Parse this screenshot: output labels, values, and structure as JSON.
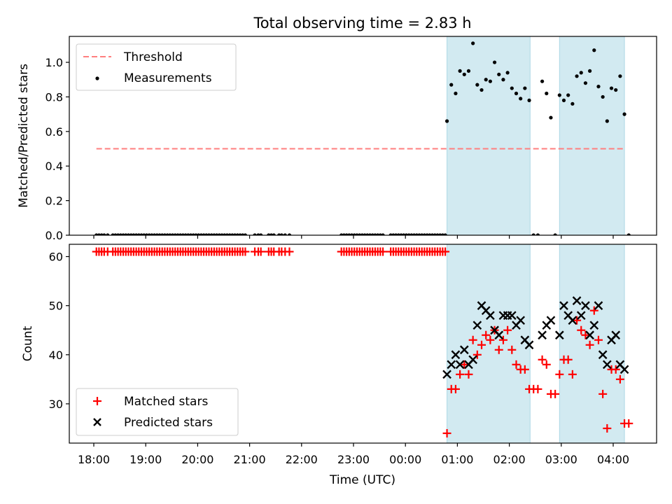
{
  "title": "Total observing time = 2.83 h",
  "shaded_color": "#add8e6",
  "chart_data": [
    {
      "type": "scatter",
      "ylabel": "Matched/Predicted stars",
      "ylim": [
        0,
        1.15
      ],
      "yticks": [
        "0.0",
        "0.2",
        "0.4",
        "0.6",
        "0.8",
        "1.0"
      ],
      "grid": false,
      "legend_position": "top-left",
      "shaded_intervals": [
        [
          "00:48",
          "02:24"
        ],
        [
          "02:58",
          "04:13"
        ]
      ],
      "series": [
        {
          "name": "Threshold",
          "style": "dashed-line",
          "color": "#ff7f7f",
          "x": [
            "18:03",
            "04:13"
          ],
          "y": [
            0.5,
            0.5
          ]
        },
        {
          "name": "Measurements",
          "style": "point",
          "color": "#000000",
          "x": [
            "18:03",
            "18:06",
            "18:09",
            "18:12",
            "18:16",
            "18:22",
            "18:25",
            "18:28",
            "18:31",
            "18:34",
            "18:37",
            "18:40",
            "18:43",
            "18:46",
            "18:49",
            "18:52",
            "18:55",
            "18:58",
            "19:01",
            "19:04",
            "19:07",
            "19:10",
            "19:13",
            "19:16",
            "19:19",
            "19:22",
            "19:25",
            "19:28",
            "19:31",
            "19:34",
            "19:37",
            "19:40",
            "19:43",
            "19:46",
            "19:49",
            "19:52",
            "19:55",
            "19:58",
            "20:01",
            "20:04",
            "20:07",
            "20:10",
            "20:13",
            "20:16",
            "20:19",
            "20:22",
            "20:25",
            "20:28",
            "20:31",
            "20:34",
            "20:37",
            "20:40",
            "20:43",
            "20:46",
            "20:49",
            "20:52",
            "20:55",
            "21:06",
            "21:10",
            "21:13",
            "21:22",
            "21:25",
            "21:28",
            "21:34",
            "21:37",
            "21:41",
            "21:46",
            "22:46",
            "22:49",
            "22:52",
            "22:55",
            "22:58",
            "23:01",
            "23:04",
            "23:07",
            "23:10",
            "23:13",
            "23:16",
            "23:19",
            "23:22",
            "23:25",
            "23:28",
            "23:31",
            "23:34",
            "23:43",
            "23:46",
            "23:49",
            "23:52",
            "23:55",
            "23:58",
            "00:01",
            "00:04",
            "00:07",
            "00:10",
            "00:13",
            "00:16",
            "00:19",
            "00:22",
            "00:25",
            "00:28",
            "00:31",
            "00:34",
            "00:37",
            "00:40",
            "00:43",
            "00:46",
            "00:48",
            "00:53",
            "00:58",
            "01:03",
            "01:08",
            "01:13",
            "01:18",
            "01:23",
            "01:28",
            "01:33",
            "01:38",
            "01:43",
            "01:48",
            "01:53",
            "01:58",
            "02:03",
            "02:08",
            "02:13",
            "02:18",
            "02:23",
            "02:28",
            "02:33",
            "02:38",
            "02:43",
            "02:48",
            "02:53",
            "02:58",
            "03:03",
            "03:08",
            "03:13",
            "03:18",
            "03:23",
            "03:28",
            "03:33",
            "03:38",
            "03:43",
            "03:48",
            "03:53",
            "03:58",
            "04:03",
            "04:08",
            "04:13",
            "04:18"
          ],
          "y": [
            0,
            0,
            0,
            0,
            0,
            0,
            0,
            0,
            0,
            0,
            0,
            0,
            0,
            0,
            0,
            0,
            0,
            0,
            0,
            0,
            0,
            0,
            0,
            0,
            0,
            0,
            0,
            0,
            0,
            0,
            0,
            0,
            0,
            0,
            0,
            0,
            0,
            0,
            0,
            0,
            0,
            0,
            0,
            0,
            0,
            0,
            0,
            0,
            0,
            0,
            0,
            0,
            0,
            0,
            0,
            0,
            0,
            0,
            0,
            0,
            0,
            0,
            0,
            0,
            0,
            0,
            0,
            0,
            0,
            0,
            0,
            0,
            0,
            0,
            0,
            0,
            0,
            0,
            0,
            0,
            0,
            0,
            0,
            0,
            0,
            0,
            0,
            0,
            0,
            0,
            0,
            0,
            0,
            0,
            0,
            0,
            0,
            0,
            0,
            0,
            0,
            0,
            0,
            0,
            0,
            0,
            0.66,
            0.87,
            0.82,
            0.95,
            0.93,
            0.95,
            1.11,
            0.87,
            0.84,
            0.9,
            0.89,
            1.0,
            0.93,
            0.9,
            0.94,
            0.85,
            0.82,
            0.79,
            0.85,
            0.78,
            0,
            0,
            0.89,
            0.82,
            0.68,
            0,
            0.81,
            0.78,
            0.81,
            0.76,
            0.92,
            0.94,
            0.88,
            0.95,
            1.07,
            0.86,
            0.8,
            0.66,
            0.85,
            0.84,
            0.92,
            0.7,
            0
          ]
        }
      ]
    },
    {
      "type": "scatter",
      "ylabel": "Count",
      "xlabel": "Time (UTC)",
      "ylim": [
        22,
        62.5
      ],
      "yticks": [
        "30",
        "40",
        "50",
        "60"
      ],
      "xticks": [
        "18:00",
        "19:00",
        "20:00",
        "21:00",
        "22:00",
        "23:00",
        "00:00",
        "01:00",
        "02:00",
        "03:00",
        "04:00"
      ],
      "grid": false,
      "legend_position": "bottom-left",
      "shaded_intervals": [
        [
          "00:48",
          "02:24"
        ],
        [
          "02:58",
          "04:13"
        ]
      ],
      "series": [
        {
          "name": "Matched stars",
          "marker": "+",
          "color": "#ff0000",
          "x": [
            "18:03",
            "18:06",
            "18:09",
            "18:12",
            "18:16",
            "18:22",
            "18:25",
            "18:28",
            "18:31",
            "18:34",
            "18:37",
            "18:40",
            "18:43",
            "18:46",
            "18:49",
            "18:52",
            "18:55",
            "18:58",
            "19:01",
            "19:04",
            "19:07",
            "19:10",
            "19:13",
            "19:16",
            "19:19",
            "19:22",
            "19:25",
            "19:28",
            "19:31",
            "19:34",
            "19:37",
            "19:40",
            "19:43",
            "19:46",
            "19:49",
            "19:52",
            "19:55",
            "19:58",
            "20:01",
            "20:04",
            "20:07",
            "20:10",
            "20:13",
            "20:16",
            "20:19",
            "20:22",
            "20:25",
            "20:28",
            "20:31",
            "20:34",
            "20:37",
            "20:40",
            "20:43",
            "20:46",
            "20:49",
            "20:52",
            "20:55",
            "21:06",
            "21:10",
            "21:13",
            "21:22",
            "21:25",
            "21:28",
            "21:34",
            "21:37",
            "21:41",
            "21:46",
            "22:46",
            "22:49",
            "22:52",
            "22:55",
            "22:58",
            "23:01",
            "23:04",
            "23:07",
            "23:10",
            "23:13",
            "23:16",
            "23:19",
            "23:22",
            "23:25",
            "23:28",
            "23:31",
            "23:34",
            "23:43",
            "23:46",
            "23:49",
            "23:52",
            "23:55",
            "23:58",
            "00:01",
            "00:04",
            "00:07",
            "00:10",
            "00:13",
            "00:16",
            "00:19",
            "00:22",
            "00:25",
            "00:28",
            "00:31",
            "00:34",
            "00:37",
            "00:40",
            "00:43",
            "00:46",
            "00:48",
            "00:53",
            "00:58",
            "01:03",
            "01:08",
            "01:13",
            "01:18",
            "01:23",
            "01:28",
            "01:33",
            "01:38",
            "01:43",
            "01:48",
            "01:53",
            "01:58",
            "02:03",
            "02:08",
            "02:13",
            "02:18",
            "02:23",
            "02:28",
            "02:33",
            "02:38",
            "02:43",
            "02:48",
            "02:53",
            "02:58",
            "03:03",
            "03:08",
            "03:13",
            "03:18",
            "03:23",
            "03:28",
            "03:33",
            "03:38",
            "03:43",
            "03:48",
            "03:53",
            "03:58",
            "04:03",
            "04:08",
            "04:13",
            "04:18"
          ],
          "y": [
            61,
            61,
            61,
            61,
            61,
            61,
            61,
            61,
            61,
            61,
            61,
            61,
            61,
            61,
            61,
            61,
            61,
            61,
            61,
            61,
            61,
            61,
            61,
            61,
            61,
            61,
            61,
            61,
            61,
            61,
            61,
            61,
            61,
            61,
            61,
            61,
            61,
            61,
            61,
            61,
            61,
            61,
            61,
            61,
            61,
            61,
            61,
            61,
            61,
            61,
            61,
            61,
            61,
            61,
            61,
            61,
            61,
            61,
            61,
            61,
            61,
            61,
            61,
            61,
            61,
            61,
            61,
            61,
            61,
            61,
            61,
            61,
            61,
            61,
            61,
            61,
            61,
            61,
            61,
            61,
            61,
            61,
            61,
            61,
            61,
            61,
            61,
            61,
            61,
            61,
            61,
            61,
            61,
            61,
            61,
            61,
            61,
            61,
            61,
            61,
            61,
            61,
            61,
            61,
            61,
            61,
            24,
            33,
            33,
            36,
            38,
            36,
            43,
            40,
            42,
            44,
            43,
            45,
            41,
            43,
            45,
            41,
            38,
            37,
            37,
            33,
            33,
            33,
            39,
            38,
            32,
            32,
            36,
            39,
            39,
            36,
            47,
            45,
            44,
            42,
            49,
            43,
            32,
            25,
            37,
            37,
            35,
            26,
            26
          ]
        },
        {
          "name": "Predicted stars",
          "marker": "x",
          "color": "#000000",
          "x": [
            "00:48",
            "00:53",
            "00:58",
            "01:03",
            "01:08",
            "01:13",
            "01:18",
            "01:23",
            "01:28",
            "01:33",
            "01:38",
            "01:43",
            "01:48",
            "01:53",
            "01:58",
            "02:03",
            "02:08",
            "02:13",
            "02:18",
            "02:23",
            "02:38",
            "02:43",
            "02:48",
            "02:58",
            "03:03",
            "03:08",
            "03:13",
            "03:18",
            "03:23",
            "03:28",
            "03:33",
            "03:38",
            "03:43",
            "03:48",
            "03:53",
            "03:58",
            "04:03",
            "04:08",
            "04:13"
          ],
          "y": [
            36,
            38,
            40,
            38,
            41,
            38,
            39,
            46,
            50,
            49,
            48,
            45,
            44,
            48,
            48,
            48,
            46,
            47,
            43,
            42,
            44,
            46,
            47,
            44,
            50,
            48,
            47,
            51,
            48,
            50,
            44,
            46,
            50,
            40,
            38,
            43,
            44,
            38,
            37
          ]
        }
      ]
    }
  ]
}
